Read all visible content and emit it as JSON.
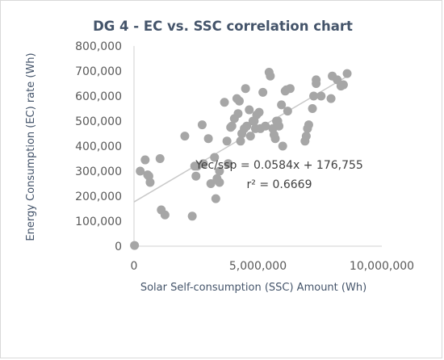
{
  "chart_data": {
    "type": "scatter",
    "title": "DG 4 - EC vs. SSC correlation chart",
    "xlabel": "Solar Self-consumption (SSC) Amount  (Wh)",
    "ylabel": "Energy Consumption (EC) rate (Wh)",
    "xlim": [
      0,
      10000000
    ],
    "ylim": [
      0,
      800000
    ],
    "x_ticks": [
      0,
      5000000,
      10000000
    ],
    "x_tick_labels": [
      "0",
      "5,000,000",
      "10,000,000"
    ],
    "y_ticks": [
      0,
      100000,
      200000,
      300000,
      400000,
      500000,
      600000,
      700000,
      800000
    ],
    "y_tick_labels": [
      "0",
      "100,000",
      "200,000",
      "300,000",
      "400,000",
      "500,000",
      "600,000",
      "700,000",
      "800,000"
    ],
    "grid": false,
    "legend": "none",
    "colors": {
      "marker": "#a6a6a6",
      "trendline": "#c9c9c9",
      "axis": "#d9d9d9"
    },
    "trendline": {
      "slope": 0.0584,
      "intercept": 176755,
      "x_range": [
        0,
        8600000
      ]
    },
    "annotations": {
      "equation": "Yec/ssp = 0.0584x + 176,755",
      "r2": "r² = 0.6669"
    },
    "points": {
      "x": [
        20000,
        250000,
        450000,
        550000,
        650000,
        600000,
        1050000,
        1100000,
        1250000,
        2050000,
        2350000,
        2450000,
        2500000,
        2550000,
        2750000,
        2800000,
        3000000,
        3100000,
        3250000,
        3300000,
        3350000,
        3450000,
        3450000,
        3650000,
        3800000,
        3750000,
        3900000,
        3950000,
        4050000,
        4150000,
        4200000,
        4250000,
        4300000,
        4350000,
        4450000,
        4500000,
        4550000,
        4650000,
        4700000,
        4800000,
        4850000,
        4900000,
        4950000,
        5050000,
        5100000,
        5200000,
        5300000,
        5450000,
        5500000,
        5600000,
        5650000,
        5700000,
        5750000,
        5800000,
        5850000,
        5950000,
        6000000,
        6100000,
        6150000,
        6200000,
        6300000,
        6900000,
        6950000,
        7000000,
        7050000,
        7200000,
        7250000,
        7350000,
        7350000,
        7550000,
        7950000,
        8000000,
        8200000,
        8350000,
        8450000,
        8600000
      ],
      "y": [
        3000,
        300000,
        345000,
        285000,
        255000,
        280000,
        350000,
        145000,
        125000,
        440000,
        120000,
        320000,
        280000,
        320000,
        485000,
        330000,
        430000,
        250000,
        355000,
        190000,
        270000,
        255000,
        300000,
        575000,
        330000,
        420000,
        475000,
        480000,
        510000,
        590000,
        530000,
        580000,
        420000,
        450000,
        470000,
        630000,
        480000,
        545000,
        440000,
        500000,
        500000,
        470000,
        525000,
        535000,
        470000,
        615000,
        480000,
        695000,
        680000,
        470000,
        445000,
        430000,
        500000,
        500000,
        480000,
        565000,
        400000,
        620000,
        625000,
        540000,
        630000,
        420000,
        440000,
        470000,
        485000,
        550000,
        600000,
        650000,
        665000,
        600000,
        590000,
        680000,
        665000,
        640000,
        645000,
        690000
      ]
    }
  }
}
